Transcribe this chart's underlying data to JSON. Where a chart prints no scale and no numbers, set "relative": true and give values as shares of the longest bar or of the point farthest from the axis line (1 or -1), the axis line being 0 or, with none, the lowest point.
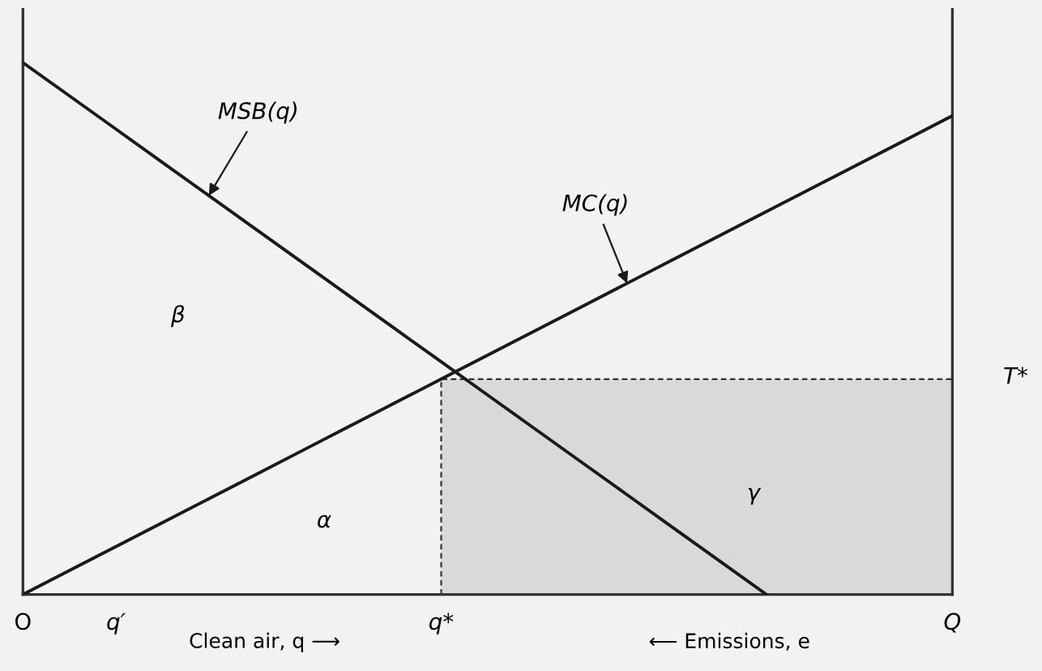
{
  "chart_data": {
    "type": "line",
    "relative": true,
    "xlabel": "Clean air, q ⟶",
    "categories": [
      "O",
      null,
      "q′",
      null,
      null,
      null,
      null,
      null,
      null,
      "q*",
      null,
      null,
      null,
      null,
      null,
      null,
      null,
      null,
      null,
      null,
      "Q"
    ],
    "series": [
      {
        "type": "area",
        "color": "#d9d9d9",
        "line_style": "dashed",
        "values": [
          null,
          null,
          null,
          null,
          null,
          null,
          null,
          null,
          null,
          0.405,
          0.405,
          0.405,
          0.405,
          0.405,
          0.405,
          0.405,
          0.405,
          0.405,
          0.405,
          0.405,
          0.405
        ]
      },
      {
        "name": "MSB(q)",
        "color": "#1a1a1a",
        "values": [
          1,
          0.9375,
          0.875,
          0.8125,
          0.75,
          0.6875,
          0.625,
          0.5625,
          0.5,
          0.4375,
          0.375,
          0.3125,
          0.25,
          0.1875,
          0.125,
          0.0625,
          0,
          null,
          null,
          null,
          null
        ]
      },
      {
        "name": "MC(q)",
        "color": "#1a1a1a",
        "values": [
          0,
          0.045,
          0.09,
          0.135,
          0.18,
          0.225,
          0.27,
          0.315,
          0.36,
          0.405,
          0.45,
          0.495,
          0.54,
          0.585,
          0.63,
          0.675,
          0.72,
          0.765,
          0.81,
          0.855,
          0.9
        ]
      }
    ],
    "annotations": [
      "β",
      "α",
      "γ",
      "T*",
      "⟵ Emissions, e"
    ]
  }
}
